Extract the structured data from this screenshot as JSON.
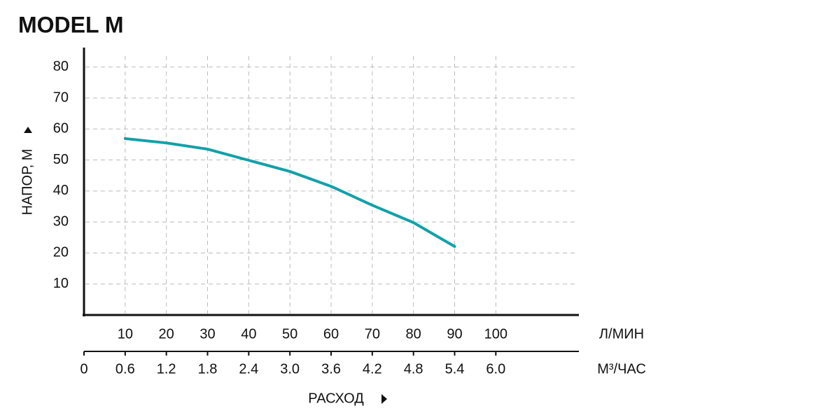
{
  "chart_data": {
    "type": "line",
    "title": "MODEL M",
    "ylabel": "НАПОР, М",
    "xlabel": "РАСХОД",
    "xunit": "Л/МИН",
    "x2unit": "М³/ЧАС",
    "x": [
      10,
      20,
      30,
      40,
      50,
      60,
      70,
      80,
      90
    ],
    "series": [
      {
        "color": "#14a0a8",
        "values": [
          56.9,
          55.5,
          53.5,
          49.9,
          46.3,
          41.5,
          35.4,
          29.8,
          22.1
        ]
      }
    ],
    "xlim": [
      0,
      120
    ],
    "xticks": [
      10,
      20,
      30,
      40,
      50,
      60,
      70,
      80,
      90,
      100
    ],
    "x2lim": [
      0,
      7.2
    ],
    "x2ticks": [
      0,
      0.6,
      1.2,
      1.8,
      2.4,
      {
        "value": 3,
        "label": "3.0"
      },
      3.6,
      4.2,
      4.8,
      5.4,
      {
        "value": 6,
        "label": "6.0"
      }
    ],
    "ylim": [
      0,
      85.8
    ],
    "yticks": [
      10,
      20,
      30,
      40,
      50,
      60,
      70,
      80
    ],
    "grid": true
  }
}
